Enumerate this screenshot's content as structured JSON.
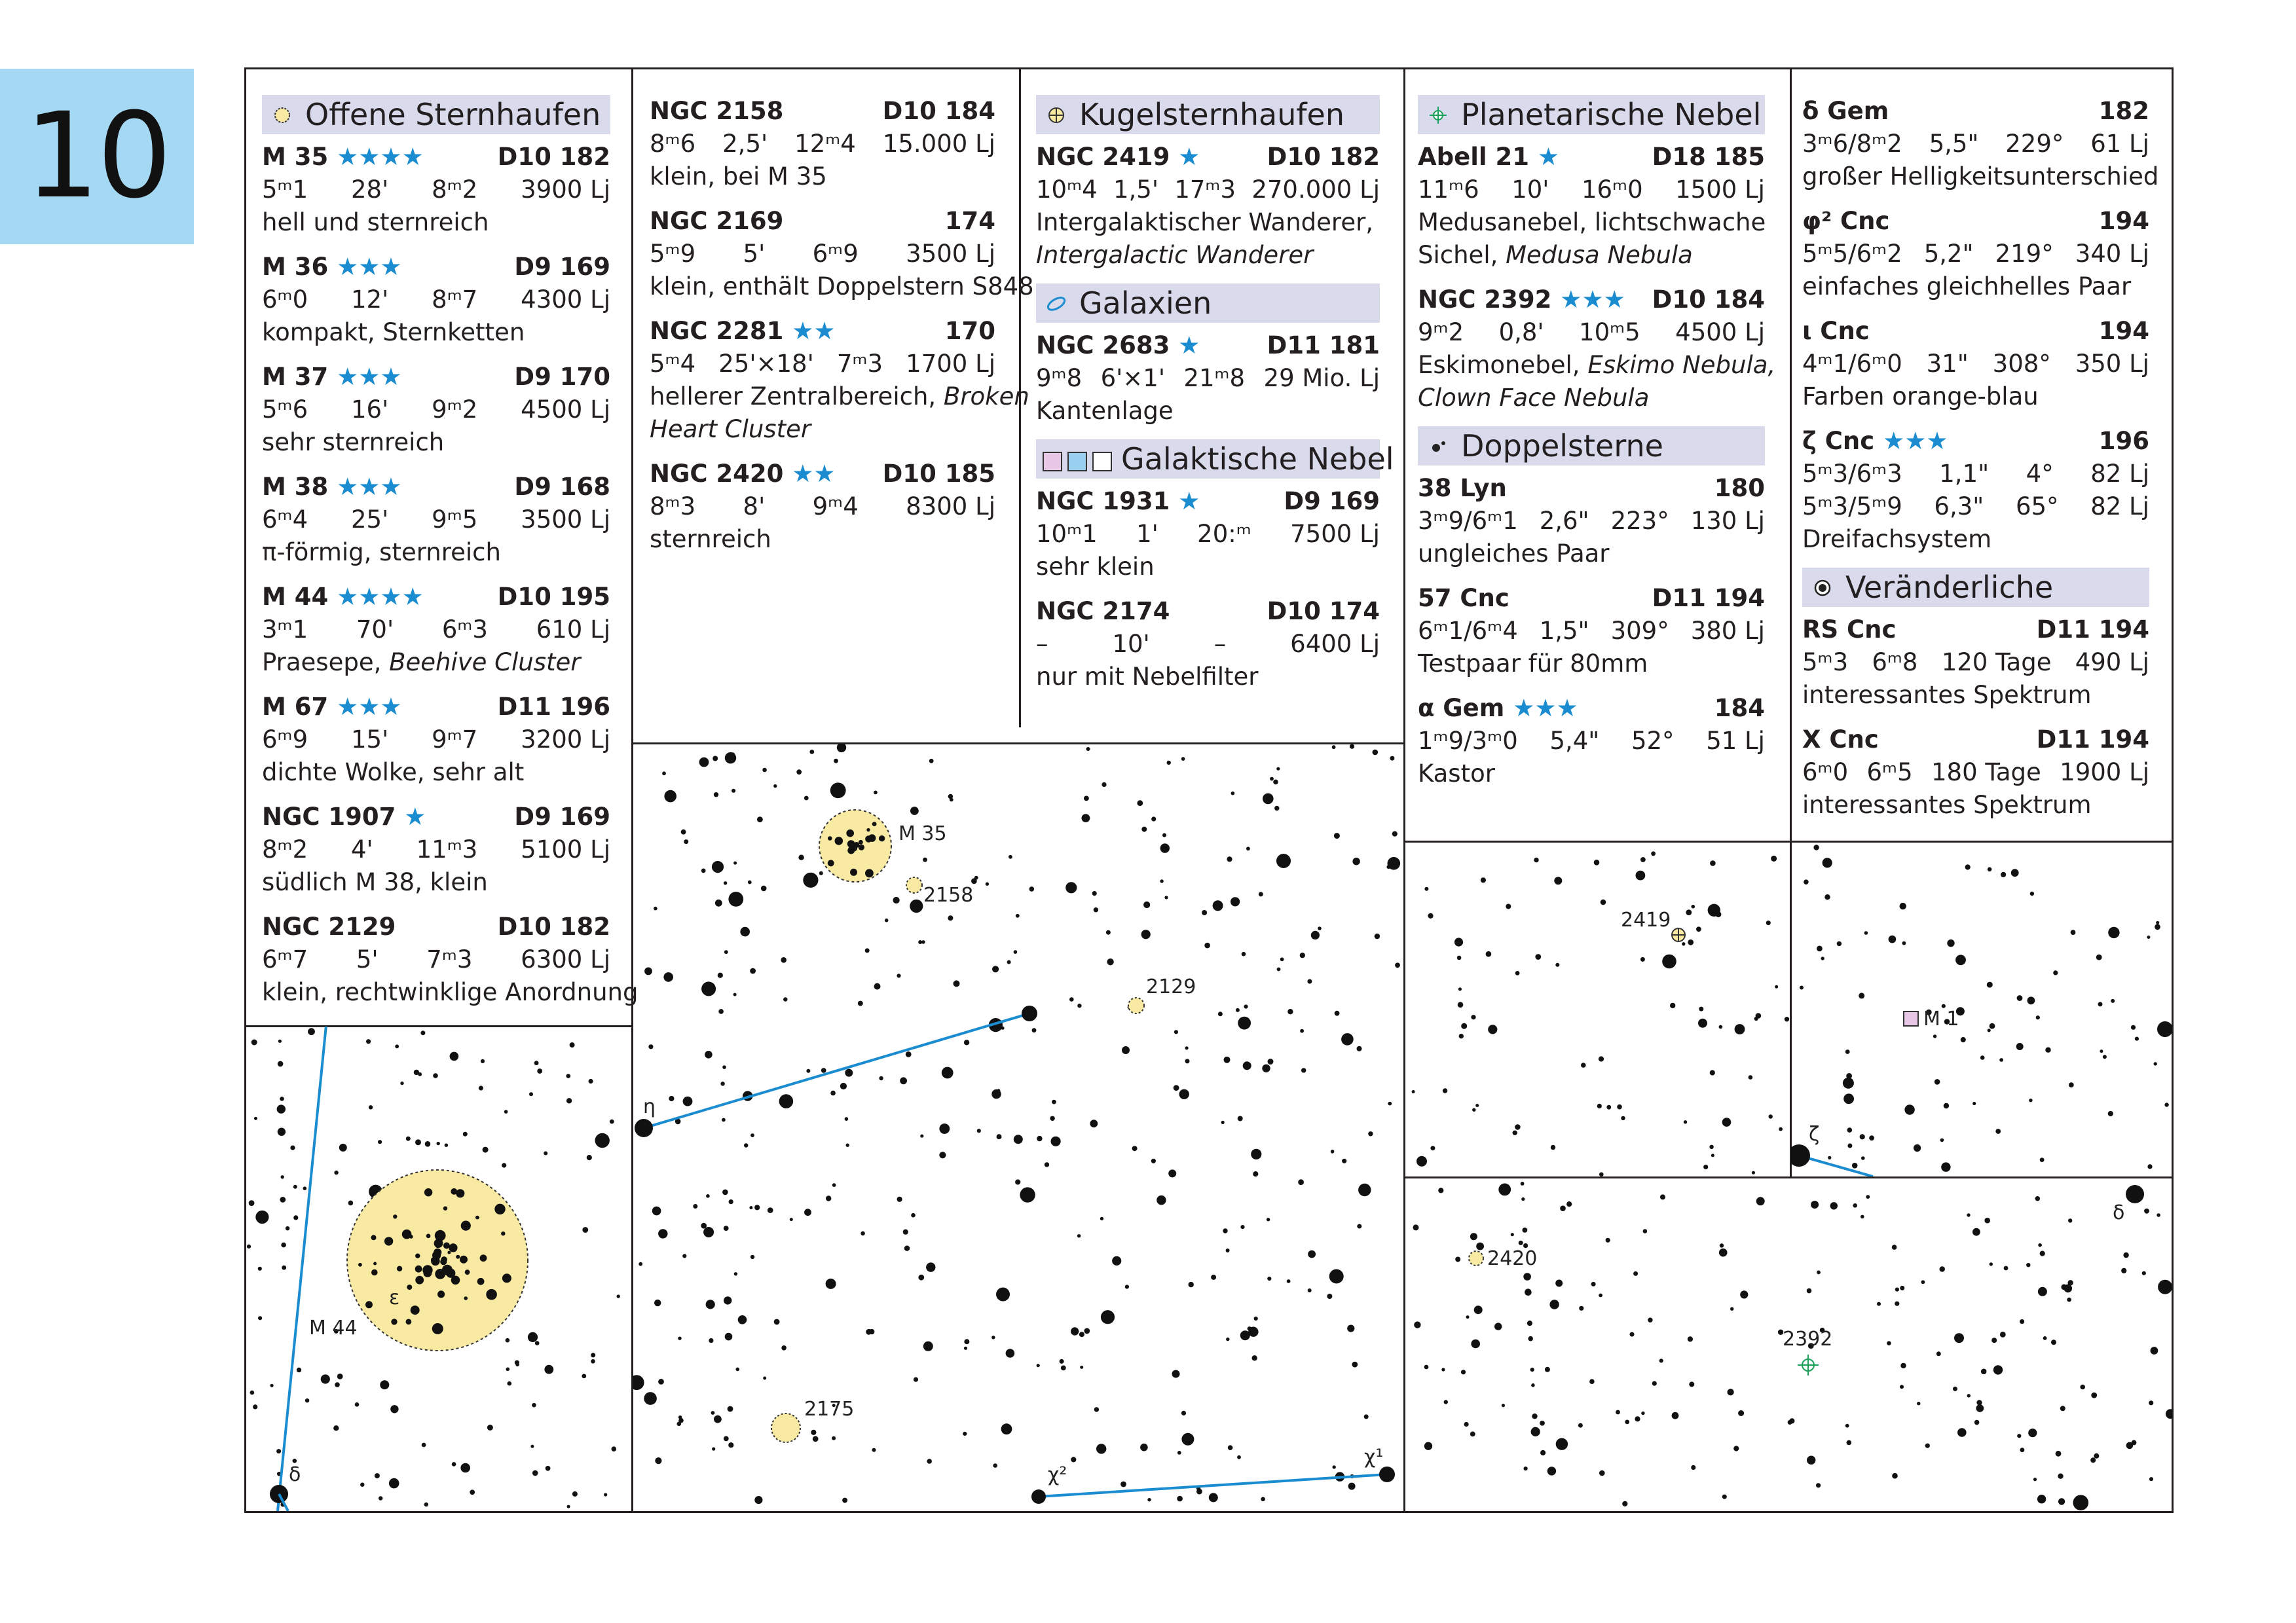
{
  "page_number": "10",
  "colors": {
    "tab": "#a5d8f3",
    "header_bg": "#d9dbec",
    "star": "#1a8ccf",
    "line": "#1a8ccf",
    "cluster": "#f8eaa3"
  },
  "col1": {
    "header": "Offene Sternhaufen",
    "entries": [
      {
        "name": "M 35",
        "stars": "★★★★",
        "ref": "D10 182",
        "vals": [
          "5ᵐ1",
          "28'",
          "8ᵐ2",
          "3900 Lj"
        ],
        "desc": "hell und sternreich",
        "desc_it": ""
      },
      {
        "name": "M 36",
        "stars": "★★★",
        "ref": "D9  169",
        "vals": [
          "6ᵐ0",
          "12'",
          "8ᵐ7",
          "4300 Lj"
        ],
        "desc": "kompakt, Sternketten",
        "desc_it": ""
      },
      {
        "name": "M 37",
        "stars": "★★★",
        "ref": "D9  170",
        "vals": [
          "5ᵐ6",
          "16'",
          "9ᵐ2",
          "4500 Lj"
        ],
        "desc": "sehr sternreich",
        "desc_it": ""
      },
      {
        "name": "M 38",
        "stars": "★★★",
        "ref": "D9  168",
        "vals": [
          "6ᵐ4",
          "25'",
          "9ᵐ5",
          "3500 Lj"
        ],
        "desc": "π-förmig, sternreich",
        "desc_it": ""
      },
      {
        "name": "M 44",
        "stars": "★★★★",
        "ref": "D10 195",
        "vals": [
          "3ᵐ1",
          "70'",
          "6ᵐ3",
          "610 Lj"
        ],
        "desc": "Praesepe, ",
        "desc_it": "Beehive Cluster"
      },
      {
        "name": "M 67",
        "stars": "★★★",
        "ref": "D11 196",
        "vals": [
          "6ᵐ9",
          "15'",
          "9ᵐ7",
          "3200 Lj"
        ],
        "desc": "dichte Wolke, sehr alt",
        "desc_it": ""
      },
      {
        "name": "NGC 1907",
        "stars": "★",
        "ref": "D9  169",
        "vals": [
          "8ᵐ2",
          "4'",
          "11ᵐ3",
          "5100 Lj"
        ],
        "desc": "südlich M 38, klein",
        "desc_it": ""
      },
      {
        "name": "NGC 2129",
        "stars": "",
        "ref": "D10 182",
        "vals": [
          "6ᵐ7",
          "5'",
          "7ᵐ3",
          "6300 Lj"
        ],
        "desc": "klein, rechtwinklige Anordnung",
        "desc_it": ""
      }
    ]
  },
  "col2": {
    "entries": [
      {
        "name": "NGC 2158",
        "stars": "",
        "ref": "D10 184",
        "vals": [
          "8ᵐ6",
          "2,5'",
          "12ᵐ4",
          "15.000 Lj"
        ],
        "desc": "klein, bei M 35",
        "desc2": "",
        "desc2_it": ""
      },
      {
        "name": "NGC 2169",
        "stars": "",
        "ref": "174",
        "vals": [
          "5ᵐ9",
          "5'",
          "6ᵐ9",
          "3500 Lj"
        ],
        "desc": "klein, enthält Doppelstern S848",
        "desc2": "",
        "desc2_it": ""
      },
      {
        "name": "NGC 2281",
        "stars": "★★",
        "ref": "170",
        "vals": [
          "5ᵐ4",
          "25'×18'",
          "7ᵐ3",
          "1700 Lj"
        ],
        "desc": "hellerer Zentralbereich, ",
        "desc_it": "Broken",
        "desc2": "",
        "desc2_it": "Heart Cluster"
      },
      {
        "name": "NGC 2420",
        "stars": "★★",
        "ref": "D10 185",
        "vals": [
          "8ᵐ3",
          "8'",
          "9ᵐ4",
          "8300 Lj"
        ],
        "desc": "sternreich",
        "desc2": "",
        "desc2_it": ""
      }
    ]
  },
  "col3": {
    "header_globular": "Kugelsternhaufen",
    "globular": {
      "name": "NGC 2419",
      "stars": "★",
      "ref": "D10 182",
      "vals": [
        "10ᵐ4",
        "1,5'",
        "17ᵐ3",
        "270.000 Lj"
      ],
      "desc": "Intergalaktischer Wanderer,",
      "desc2_it": "Intergalactic Wanderer"
    },
    "header_galaxies": "Galaxien",
    "galaxy": {
      "name": "NGC 2683",
      "stars": "★",
      "ref": "D11  181",
      "vals": [
        "9ᵐ8",
        "6'×1'",
        "21ᵐ8",
        "29 Mio. Lj"
      ],
      "desc": "Kantenlage"
    },
    "header_nebulae": "Galaktische Nebel",
    "nebulae": [
      {
        "name": "NGC 1931",
        "stars": "★",
        "ref": "D9   169",
        "vals": [
          "10ᵐ1",
          "1'",
          "20:ᵐ",
          "7500 Lj"
        ],
        "desc": "sehr klein"
      },
      {
        "name": "NGC 2174",
        "stars": "",
        "ref": "D10 174",
        "vals": [
          "–",
          "10'",
          "–",
          "6400 Lj"
        ],
        "desc": "nur mit Nebelfilter"
      }
    ]
  },
  "col4": {
    "header_planetary": "Planetarische Nebel",
    "planetary": [
      {
        "name": "Abell 21",
        "stars": "★",
        "ref": "D18 185",
        "vals": [
          "11ᵐ6",
          "10'",
          "16ᵐ0",
          "1500 Lj"
        ],
        "desc": "Medusanebel, lichtschwache",
        "desc2": "Sichel, ",
        "desc2_it": "Medusa Nebula"
      },
      {
        "name": "NGC 2392",
        "stars": "★★★",
        "ref": "D10 184",
        "vals": [
          "9ᵐ2",
          "0,8'",
          "10ᵐ5",
          "4500 Lj"
        ],
        "desc": "Eskimonebel, ",
        "desc_it": "Eskimo Nebula,",
        "desc2": "",
        "desc2_it": "Clown Face Nebula"
      }
    ],
    "header_double": "Doppelsterne",
    "double": [
      {
        "name": "38 Lyn",
        "stars": "",
        "ref": "180",
        "vals": [
          "3ᵐ9/6ᵐ1",
          "2,6\"",
          "223°",
          "130 Lj"
        ],
        "desc": "ungleiches Paar"
      },
      {
        "name": "57 Cnc",
        "stars": "",
        "ref": "D11  194",
        "vals": [
          "6ᵐ1/6ᵐ4",
          "1,5\"",
          "309°",
          "380 Lj"
        ],
        "desc": "Testpaar für 80mm"
      },
      {
        "name": "α Gem",
        "stars": "★★★",
        "ref": "184",
        "vals": [
          "1ᵐ9/3ᵐ0",
          "5,4\"",
          "52°",
          "51 Lj"
        ],
        "desc": "Kastor"
      }
    ]
  },
  "col5": {
    "double": [
      {
        "name": "δ Gem",
        "stars": "",
        "ref": "182",
        "vals": [
          "3ᵐ6/8ᵐ2",
          "5,5\"",
          "229°",
          "61 Lj"
        ],
        "desc": "großer Helligkeitsunterschied"
      },
      {
        "name": "φ² Cnc",
        "stars": "",
        "ref": "194",
        "vals": [
          "5ᵐ5/6ᵐ2",
          "5,2\"",
          "219°",
          "340 Lj"
        ],
        "desc": "einfaches gleichhelles Paar"
      },
      {
        "name": "ι Cnc",
        "stars": "",
        "ref": "194",
        "vals": [
          "4ᵐ1/6ᵐ0",
          "31\"",
          "308°",
          "350 Lj"
        ],
        "desc": "Farben orange-blau"
      }
    ],
    "triple": {
      "name": "ζ Cnc",
      "stars": "★★★",
      "ref": "196",
      "vals": [
        "5ᵐ3/6ᵐ3",
        "1,1\"",
        "4°",
        "82 Lj"
      ],
      "vals2": [
        "5ᵐ3/5ᵐ9",
        "6,3\"",
        "65°",
        "82 Lj"
      ],
      "desc": "Dreifachsystem"
    },
    "header_variables": "Veränderliche",
    "variables": [
      {
        "name": "RS Cnc",
        "stars": "",
        "ref": "D11  194",
        "vals": [
          "5ᵐ3",
          "6ᵐ8",
          "120 Tage",
          "490 Lj"
        ],
        "desc": "interessantes Spektrum"
      },
      {
        "name": "X Cnc",
        "stars": "",
        "ref": "D11  194",
        "vals": [
          "6ᵐ0",
          "6ᵐ5",
          "180 Tage",
          "1900 Lj"
        ],
        "desc": "interessantes Spektrum"
      }
    ]
  },
  "map_labels": {
    "m44": "M 44",
    "epsilon": "ε",
    "delta_left": "δ",
    "m35": "M 35",
    "n2158": "2158",
    "n2129": "2129",
    "eta": "η",
    "n2175": "2175",
    "chi2": "χ²",
    "chi1": "χ¹",
    "n2419": "2419",
    "m1": "M 1",
    "zeta": "ζ",
    "n2420": "2420",
    "n2392": "2392",
    "delta_right": "δ"
  }
}
